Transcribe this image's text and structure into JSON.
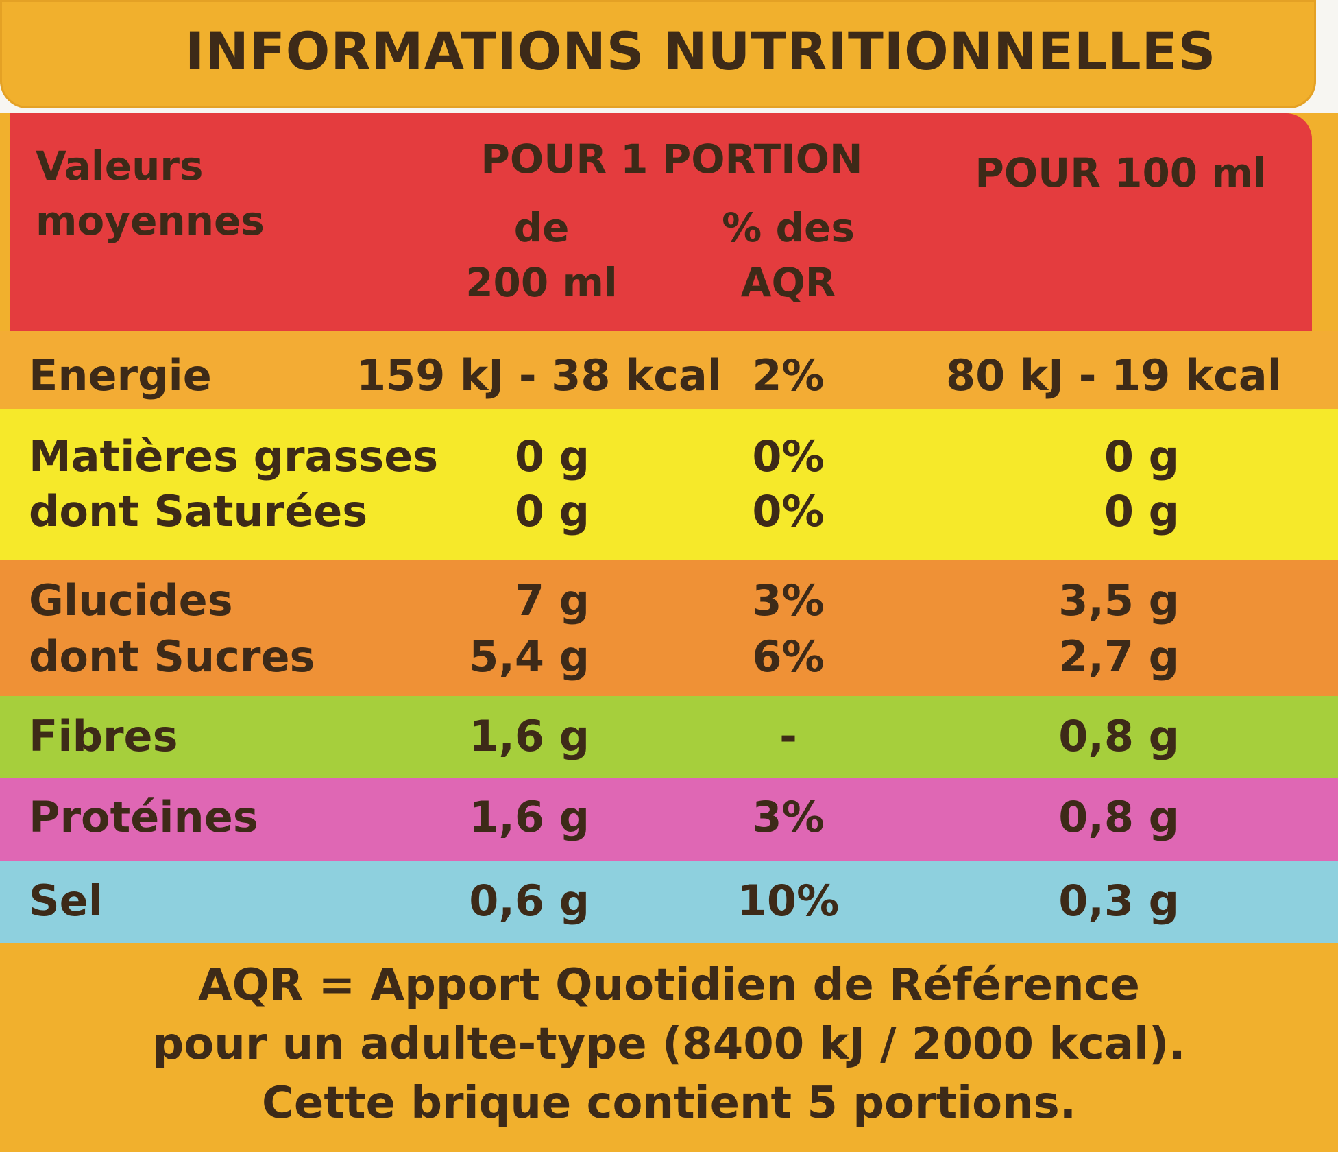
{
  "title": "INFORMATIONS NUTRITIONNELLES",
  "header": {
    "col1_line1": "Valeurs",
    "col1_line2": "moyennes",
    "col2_title": "POUR 1 PORTION",
    "col2_sub_line1": "de",
    "col2_sub_line2": "200 ml",
    "col3_sub_line1": "% des",
    "col3_sub_line2": "AQR",
    "col4_title": "POUR 100 ml"
  },
  "rows": [
    {
      "label": "Energie",
      "portion": "159 kJ - 38 kcal",
      "aqr": "2%",
      "per100": "80 kJ - 19 kcal"
    },
    {
      "label": "Matières grasses",
      "portion": "0 g",
      "aqr": "0%",
      "per100": "0 g"
    },
    {
      "label": "dont Saturées",
      "portion": "0 g",
      "aqr": "0%",
      "per100": "0 g"
    },
    {
      "label": "Glucides",
      "portion": "7 g",
      "aqr": "3%",
      "per100": "3,5 g"
    },
    {
      "label": "dont Sucres",
      "portion": "5,4 g",
      "aqr": "6%",
      "per100": "2,7 g"
    },
    {
      "label": "Fibres",
      "portion": "1,6 g",
      "aqr": "-",
      "per100": "0,8 g"
    },
    {
      "label": "Protéines",
      "portion": "1,6 g",
      "aqr": "3%",
      "per100": "0,8 g"
    },
    {
      "label": "Sel",
      "portion": "0,6 g",
      "aqr": "10%",
      "per100": "0,3 g"
    }
  ],
  "footer": {
    "line1": "AQR = Apport Quotidien de Référence",
    "line2": "pour un adulte-type (8400 kJ / 2000 kcal).",
    "line3": "Cette brique contient 5 portions."
  },
  "colors": {
    "title_band": "#f1b02d",
    "header_band": "#e43c3e",
    "energy_band": "#f3ac34",
    "fat_band": "#f6e92a",
    "carb_band": "#ef9136",
    "fibre_band": "#a6cf3c",
    "protein_band": "#df67b4",
    "salt_band": "#8ed0de",
    "text": "#3d2a18"
  }
}
